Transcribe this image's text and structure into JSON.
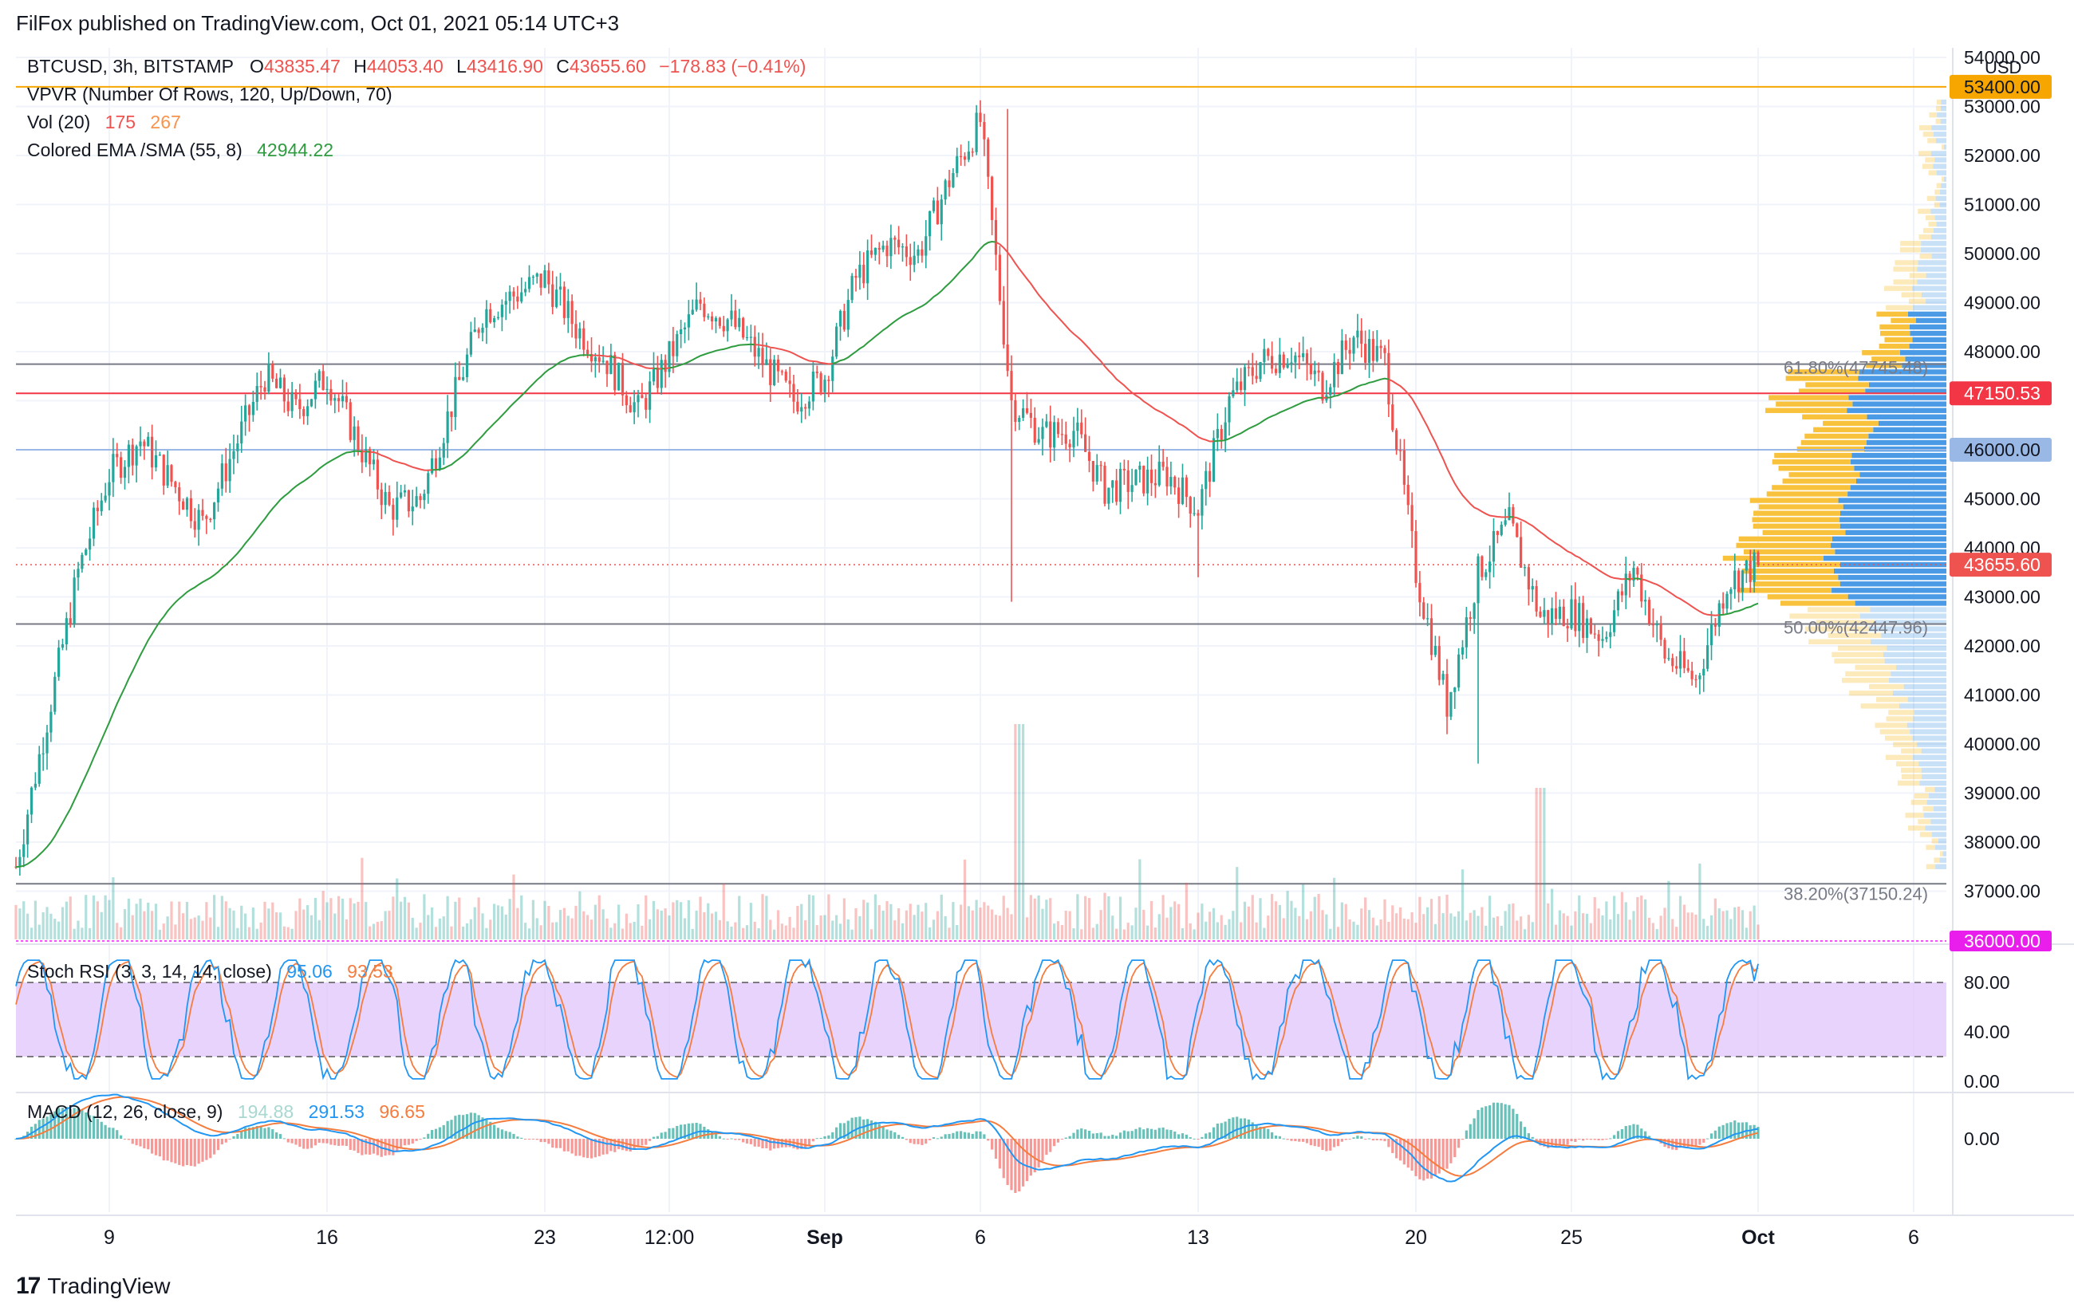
{
  "header": {
    "published": "FilFox published on TradingView.com, Oct 01, 2021 05:14 UTC+3",
    "symbol": "BTCUSD, 3h, BITSTAMP",
    "ohlc": {
      "o_label": "O",
      "o": "43835.47",
      "h_label": "H",
      "h": "44053.40",
      "l_label": "L",
      "l": "43416.90",
      "c_label": "C",
      "c": "43655.60",
      "change": "−178.83 (−0.41%)"
    },
    "indicators": {
      "vpvr": "VPVR (Number Of Rows, 120, Up/Down, 70)",
      "vol_label": "Vol (20)",
      "vol_v1": "175",
      "vol_v2": "267",
      "ema_label": "Colored EMA /SMA (55, 8)",
      "ema_value": "42944.22",
      "stoch_label": "Stoch RSI (3, 3, 14, 14, close)",
      "stoch_k": "95.06",
      "stoch_d": "93.53",
      "macd_label": "MACD (12, 26, close, 9)",
      "macd_hist": "194.88",
      "macd_line": "291.53",
      "macd_signal": "96.65"
    }
  },
  "axis": {
    "currency": "USD",
    "price_ticks": [
      "54000.00",
      "53000.00",
      "52000.00",
      "51000.00",
      "50000.00",
      "49000.00",
      "48000.00",
      "45000.00",
      "44000.00",
      "43000.00",
      "42000.00",
      "41000.00",
      "40000.00",
      "39000.00",
      "38000.00",
      "37000.00"
    ],
    "stoch_ticks": [
      "80.00",
      "40.00",
      "0.00"
    ],
    "macd_ticks": [
      "0.00"
    ],
    "x_labels": [
      "9",
      "16",
      "23",
      "12:00",
      "Sep",
      "6",
      "13",
      "20",
      "25",
      "Oct",
      "6"
    ]
  },
  "price_labels": {
    "level_53400": "53400.00",
    "level_47150": "47150.53",
    "level_46000": "46000.00",
    "last": "43655.60",
    "level_36000": "36000.00"
  },
  "fib": {
    "f618": "61.80%(47745.48)",
    "f500": "50.00%(42447.96)",
    "f382": "38.20%(37150.24)"
  },
  "colors": {
    "up": "#26a69a",
    "down": "#ef5350",
    "ema_up": "#2e9c3f",
    "ema_down": "#ef5350",
    "orange_line": "#f7a600",
    "red_line": "#f23645",
    "blue_line": "#9ab8e6",
    "stoch_k": "#2196f3",
    "stoch_d": "#f57c3f",
    "stoch_band": "#e1c8fb",
    "vp_up": "#f8c23c",
    "vp_down": "#4a9ae6",
    "magenta": "#e91eed"
  },
  "footer": {
    "brand": "TradingView"
  },
  "chart_data": {
    "type": "candlestick",
    "title": "BTCUSD, 3h, BITSTAMP",
    "ylabel": "USD",
    "ylim": [
      36000,
      54200
    ],
    "x_range": [
      "2021-08-06",
      "2021-10-07"
    ],
    "key_points": [
      {
        "t": "Aug 6",
        "price": 37500
      },
      {
        "t": "Aug 7",
        "price": 40500
      },
      {
        "t": "Aug 8",
        "price": 43500
      },
      {
        "t": "Aug 9",
        "price": 45500
      },
      {
        "t": "Aug 10",
        "price": 46200
      },
      {
        "t": "Aug 12",
        "price": 44500
      },
      {
        "t": "Aug 14",
        "price": 47500
      },
      {
        "t": "Aug 15",
        "price": 46800
      },
      {
        "t": "Aug 16",
        "price": 47500
      },
      {
        "t": "Aug 18",
        "price": 44800
      },
      {
        "t": "Aug 19",
        "price": 45000
      },
      {
        "t": "Aug 21",
        "price": 48800
      },
      {
        "t": "Aug 23",
        "price": 49500
      },
      {
        "t": "Aug 24",
        "price": 48500
      },
      {
        "t": "Aug 25",
        "price": 47800
      },
      {
        "t": "Aug 26",
        "price": 46800
      },
      {
        "t": "Aug 28",
        "price": 49000
      },
      {
        "t": "Aug 29",
        "price": 48600
      },
      {
        "t": "Aug 31",
        "price": 47000
      },
      {
        "t": "Sep 1",
        "price": 47500
      },
      {
        "t": "Sep 2",
        "price": 49500
      },
      {
        "t": "Sep 3",
        "price": 50200
      },
      {
        "t": "Sep 4",
        "price": 50000
      },
      {
        "t": "Sep 5",
        "price": 51500
      },
      {
        "t": "Sep 6",
        "price": 52700
      },
      {
        "t": "Sep 7",
        "price": 47000
      },
      {
        "t": "Sep 8",
        "price": 46300
      },
      {
        "t": "Sep 9",
        "price": 46400
      },
      {
        "t": "Sep 10",
        "price": 45200
      },
      {
        "t": "Sep 12",
        "price": 45500
      },
      {
        "t": "Sep 13",
        "price": 44800
      },
      {
        "t": "Sep 14",
        "price": 47000
      },
      {
        "t": "Sep 15",
        "price": 47800
      },
      {
        "t": "Sep 16",
        "price": 48000
      },
      {
        "t": "Sep 17",
        "price": 47300
      },
      {
        "t": "Sep 18",
        "price": 48300
      },
      {
        "t": "Sep 19",
        "price": 47800
      },
      {
        "t": "Sep 20",
        "price": 43500
      },
      {
        "t": "Sep 21",
        "price": 40800
      },
      {
        "t": "Sep 22",
        "price": 43500
      },
      {
        "t": "Sep 23",
        "price": 44500
      },
      {
        "t": "Sep 24",
        "price": 42600
      },
      {
        "t": "Sep 25",
        "price": 42700
      },
      {
        "t": "Sep 26",
        "price": 42200
      },
      {
        "t": "Sep 27",
        "price": 43600
      },
      {
        "t": "Sep 28",
        "price": 41800
      },
      {
        "t": "Sep 29",
        "price": 41300
      },
      {
        "t": "Sep 30",
        "price": 43300
      },
      {
        "t": "Oct 1",
        "price": 43655.6
      }
    ],
    "stoch_levels": [
      80,
      20
    ],
    "fib_levels": [
      {
        "label": "61.80%",
        "price": 47745.48
      },
      {
        "label": "50.00%",
        "price": 42447.96
      },
      {
        "label": "38.20%",
        "price": 37150.24
      }
    ],
    "horizontal_lines": [
      53400,
      47150.53,
      46000,
      43655.6,
      36000
    ]
  }
}
